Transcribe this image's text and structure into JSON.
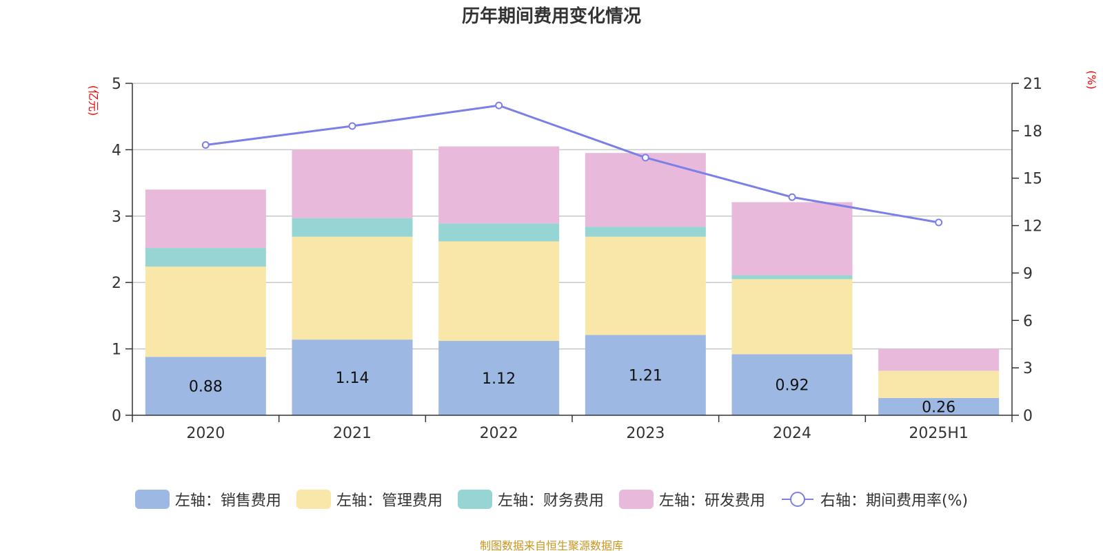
{
  "chart_data": {
    "type": "bar",
    "title": "历年期间费用变化情况",
    "categories": [
      "2020",
      "2021",
      "2022",
      "2023",
      "2024",
      "2025H1"
    ],
    "left_axis": {
      "unit": "(亿元)",
      "range": [
        0,
        5
      ],
      "ticks": [
        "0",
        "1",
        "2",
        "3",
        "4",
        "5"
      ]
    },
    "right_axis": {
      "unit": "(%)",
      "range": [
        0,
        21
      ],
      "ticks": [
        "0",
        "3",
        "6",
        "9",
        "12",
        "15",
        "18",
        "21"
      ]
    },
    "stacked": true,
    "series": [
      {
        "name": "左轴：销售费用",
        "axis": "left",
        "color": "#9db8e2",
        "values": [
          0.88,
          1.14,
          1.12,
          1.21,
          0.92,
          0.26
        ],
        "labels": [
          "0.88",
          "1.14",
          "1.12",
          "1.21",
          "0.92",
          "0.26"
        ]
      },
      {
        "name": "左轴：管理费用",
        "axis": "left",
        "color": "#f8e7a8",
        "values": [
          1.36,
          1.55,
          1.5,
          1.48,
          1.13,
          0.41
        ]
      },
      {
        "name": "左轴：财务费用",
        "axis": "left",
        "color": "#97d4d4",
        "values": [
          0.28,
          0.28,
          0.27,
          0.15,
          0.06,
          0.0
        ]
      },
      {
        "name": "左轴：研发费用",
        "axis": "left",
        "color": "#e8b9da",
        "values": [
          0.88,
          1.03,
          1.16,
          1.11,
          1.1,
          0.33
        ]
      },
      {
        "name": "右轴：期间费用率(%)",
        "axis": "right",
        "type": "line",
        "color": "#7b7fe8",
        "values": [
          17.1,
          18.3,
          19.6,
          16.3,
          13.8,
          12.2
        ]
      }
    ],
    "grid": true,
    "legend_position": "bottom"
  },
  "source": "制图数据来自恒生聚源数据库"
}
